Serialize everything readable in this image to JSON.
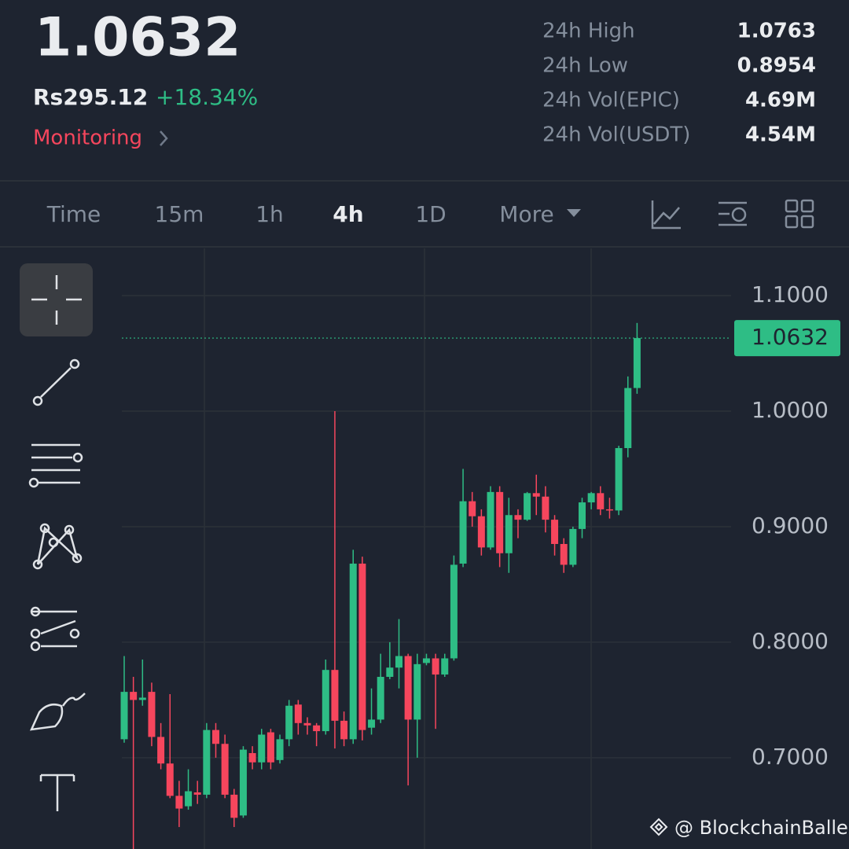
{
  "header": {
    "price": "1.0632",
    "fiat": "Rs295.12",
    "change": "+18.34%",
    "monitoring": "Monitoring",
    "stats": [
      {
        "label": "24h High",
        "value": "1.0763"
      },
      {
        "label": "24h Low",
        "value": "0.8954"
      },
      {
        "label": "24h Vol(EPIC)",
        "value": "4.69M"
      },
      {
        "label": "24h Vol(USDT)",
        "value": "4.54M"
      }
    ]
  },
  "tabs": [
    "Time",
    "15m",
    "1h",
    "4h",
    "1D",
    "More"
  ],
  "watermark": "@ BlockchainBaller",
  "chart_data": {
    "type": "candlestick",
    "open": [
      0.716,
      0.757,
      0.75,
      0.757,
      0.718,
      0.695,
      0.667,
      0.658,
      0.67,
      0.668,
      0.724,
      0.712,
      0.668,
      0.65,
      0.704,
      0.696,
      0.722,
      0.698,
      0.716,
      0.746,
      0.73,
      0.728,
      0.723,
      0.776,
      0.732,
      0.716,
      0.868,
      0.726,
      0.733,
      0.77,
      0.778,
      0.788,
      0.733,
      0.782,
      0.786,
      0.772,
      0.786,
      0.868,
      0.922,
      0.909,
      0.882,
      0.93,
      0.877,
      0.91,
      0.906,
      0.929,
      0.926,
      0.906,
      0.885,
      0.867,
      0.898,
      0.921,
      0.929,
      0.915,
      0.914,
      0.968,
      1.02
    ],
    "high": [
      0.788,
      0.77,
      0.785,
      0.765,
      0.73,
      0.755,
      0.68,
      0.69,
      0.68,
      0.73,
      0.73,
      0.72,
      0.673,
      0.71,
      0.71,
      0.725,
      0.725,
      0.72,
      0.75,
      0.75,
      0.735,
      0.73,
      0.785,
      1.0,
      0.74,
      0.88,
      0.874,
      0.76,
      0.79,
      0.8,
      0.82,
      0.79,
      0.79,
      0.79,
      0.79,
      0.79,
      0.875,
      0.95,
      0.93,
      0.915,
      0.935,
      0.935,
      0.925,
      0.915,
      0.93,
      0.945,
      0.935,
      0.91,
      0.89,
      0.9,
      0.925,
      0.93,
      0.935,
      0.925,
      0.97,
      1.03,
      1.0763
    ],
    "low": [
      0.713,
      0.621,
      0.745,
      0.71,
      0.69,
      0.665,
      0.64,
      0.655,
      0.66,
      0.665,
      0.7,
      0.665,
      0.64,
      0.648,
      0.69,
      0.69,
      0.69,
      0.695,
      0.71,
      0.72,
      0.72,
      0.71,
      0.72,
      0.708,
      0.71,
      0.712,
      0.715,
      0.72,
      0.73,
      0.768,
      0.76,
      0.676,
      0.7,
      0.78,
      0.725,
      0.77,
      0.784,
      0.865,
      0.9,
      0.875,
      0.88,
      0.865,
      0.86,
      0.89,
      0.905,
      0.91,
      0.895,
      0.875,
      0.86,
      0.865,
      0.89,
      0.915,
      0.91,
      0.907,
      0.91,
      0.96,
      1.015
    ],
    "close": [
      0.757,
      0.75,
      0.752,
      0.718,
      0.695,
      0.667,
      0.656,
      0.671,
      0.668,
      0.724,
      0.712,
      0.668,
      0.648,
      0.707,
      0.696,
      0.72,
      0.696,
      0.716,
      0.745,
      0.73,
      0.728,
      0.723,
      0.776,
      0.732,
      0.716,
      0.868,
      0.724,
      0.733,
      0.77,
      0.778,
      0.788,
      0.733,
      0.781,
      0.786,
      0.772,
      0.786,
      0.867,
      0.922,
      0.909,
      0.882,
      0.93,
      0.877,
      0.91,
      0.906,
      0.929,
      0.926,
      0.906,
      0.885,
      0.867,
      0.898,
      0.921,
      0.929,
      0.915,
      0.914,
      0.968,
      1.02,
      1.0632
    ],
    "up_color": "#2ebd85",
    "down_color": "#f6465d",
    "ylim": [
      0.621,
      1.1415
    ],
    "yticks": [
      {
        "value": 1.1,
        "label": "1.1000"
      },
      {
        "value": 1.0,
        "label": "1.0000"
      },
      {
        "value": 0.9,
        "label": "0.9000"
      },
      {
        "value": 0.8,
        "label": "0.8000"
      },
      {
        "value": 0.7,
        "label": "0.7000"
      }
    ],
    "last_price": 1.0632,
    "grid": true
  }
}
